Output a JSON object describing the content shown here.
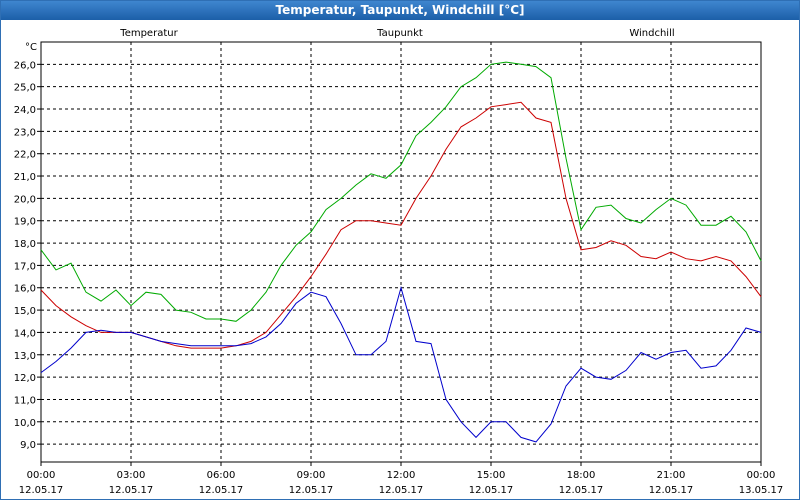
{
  "window": {
    "title": "Temperatur, Taupunkt, Windchill [°C]"
  },
  "chart_data": {
    "type": "line",
    "title": "Temperatur, Taupunkt, Windchill [°C]",
    "ylabel": "°C",
    "xlabel": "",
    "grid": true,
    "x_range_hours": [
      0,
      24
    ],
    "ylim": [
      8.2,
      27.0
    ],
    "y_ticks": [
      "9,0",
      "10,0",
      "11,0",
      "12,0",
      "13,0",
      "14,0",
      "15,0",
      "16,0",
      "17,0",
      "18,0",
      "19,0",
      "20,0",
      "21,0",
      "22,0",
      "23,0",
      "24,0",
      "25,0",
      "26,0"
    ],
    "y_tick_values": [
      9,
      10,
      11,
      12,
      13,
      14,
      15,
      16,
      17,
      18,
      19,
      20,
      21,
      22,
      23,
      24,
      25,
      26
    ],
    "x_ticks": [
      {
        "time": "00:00",
        "date": "12.05.17"
      },
      {
        "time": "03:00",
        "date": "12.05.17"
      },
      {
        "time": "06:00",
        "date": "12.05.17"
      },
      {
        "time": "09:00",
        "date": "12.05.17"
      },
      {
        "time": "12:00",
        "date": "12.05.17"
      },
      {
        "time": "15:00",
        "date": "12.05.17"
      },
      {
        "time": "18:00",
        "date": "12.05.17"
      },
      {
        "time": "21:00",
        "date": "12.05.17"
      },
      {
        "time": "00:00",
        "date": "13.05.17"
      }
    ],
    "series": [
      {
        "name": "Temperatur",
        "color": "#cc0000",
        "x": [
          0,
          0.5,
          1,
          1.5,
          2,
          2.5,
          3,
          3.5,
          4,
          4.5,
          5,
          5.5,
          6,
          6.5,
          7,
          7.5,
          8,
          8.5,
          9,
          9.5,
          10,
          10.5,
          11,
          11.5,
          12,
          12.5,
          13,
          13.5,
          14,
          14.5,
          15,
          15.5,
          16,
          16.5,
          17,
          17.5,
          18,
          18.5,
          19,
          19.5,
          20,
          20.5,
          21,
          21.5,
          22,
          22.5,
          23,
          23.5,
          24
        ],
        "values": [
          15.9,
          15.2,
          14.7,
          14.3,
          14.0,
          14.0,
          14.0,
          13.8,
          13.6,
          13.4,
          13.3,
          13.3,
          13.3,
          13.4,
          13.6,
          14.0,
          14.8,
          15.6,
          16.5,
          17.5,
          18.6,
          19.0,
          19.0,
          18.9,
          18.8,
          20.0,
          21.0,
          22.2,
          23.2,
          23.6,
          24.1,
          24.2,
          24.3,
          23.6,
          23.4,
          20.0,
          17.7,
          17.8,
          18.1,
          17.9,
          17.4,
          17.3,
          17.6,
          17.3,
          17.2,
          17.4,
          17.2,
          16.5,
          15.6
        ]
      },
      {
        "name": "Taupunkt",
        "color": "#0000cc",
        "x": [
          0,
          0.5,
          1,
          1.5,
          2,
          2.5,
          3,
          3.5,
          4,
          4.5,
          5,
          5.5,
          6,
          6.5,
          7,
          7.5,
          8,
          8.5,
          9,
          9.5,
          10,
          10.5,
          11,
          11.5,
          12,
          12.5,
          13,
          13.5,
          14,
          14.5,
          15,
          15.5,
          16,
          16.5,
          17,
          17.5,
          18,
          18.5,
          19,
          19.5,
          20,
          20.5,
          21,
          21.5,
          22,
          22.5,
          23,
          23.5,
          24
        ],
        "values": [
          12.2,
          12.7,
          13.3,
          14.0,
          14.1,
          14.0,
          14.0,
          13.8,
          13.6,
          13.5,
          13.4,
          13.4,
          13.4,
          13.4,
          13.5,
          13.8,
          14.4,
          15.3,
          15.8,
          15.6,
          14.4,
          13.0,
          13.0,
          13.6,
          16.0,
          13.6,
          13.5,
          11.0,
          10.0,
          9.3,
          10.0,
          10.0,
          9.3,
          9.1,
          9.9,
          11.6,
          12.4,
          12.0,
          11.9,
          12.3,
          13.1,
          12.8,
          13.1,
          13.2,
          12.4,
          12.5,
          13.2,
          14.2,
          14.0
        ]
      },
      {
        "name": "Windchill",
        "color": "#00aa00",
        "x": [
          0,
          0.5,
          1,
          1.5,
          2,
          2.5,
          3,
          3.5,
          4,
          4.5,
          5,
          5.5,
          6,
          6.5,
          7,
          7.5,
          8,
          8.5,
          9,
          9.5,
          10,
          10.5,
          11,
          11.5,
          12,
          12.5,
          13,
          13.5,
          14,
          14.5,
          15,
          15.5,
          16,
          16.5,
          17,
          17.5,
          18,
          18.5,
          19,
          19.5,
          20,
          20.5,
          21,
          21.5,
          22,
          22.5,
          23,
          23.5,
          24
        ],
        "values": [
          17.7,
          16.8,
          17.1,
          15.8,
          15.4,
          15.9,
          15.2,
          15.8,
          15.7,
          15.0,
          14.9,
          14.6,
          14.6,
          14.5,
          15.0,
          15.8,
          17.0,
          17.9,
          18.5,
          19.5,
          20.0,
          20.6,
          21.1,
          20.9,
          21.5,
          22.8,
          23.4,
          24.1,
          25.0,
          25.4,
          26.0,
          26.1,
          26.0,
          25.9,
          25.4,
          21.8,
          18.6,
          19.6,
          19.7,
          19.1,
          18.9,
          19.5,
          20.0,
          19.7,
          18.8,
          18.8,
          19.2,
          18.5,
          17.2
        ]
      }
    ]
  }
}
